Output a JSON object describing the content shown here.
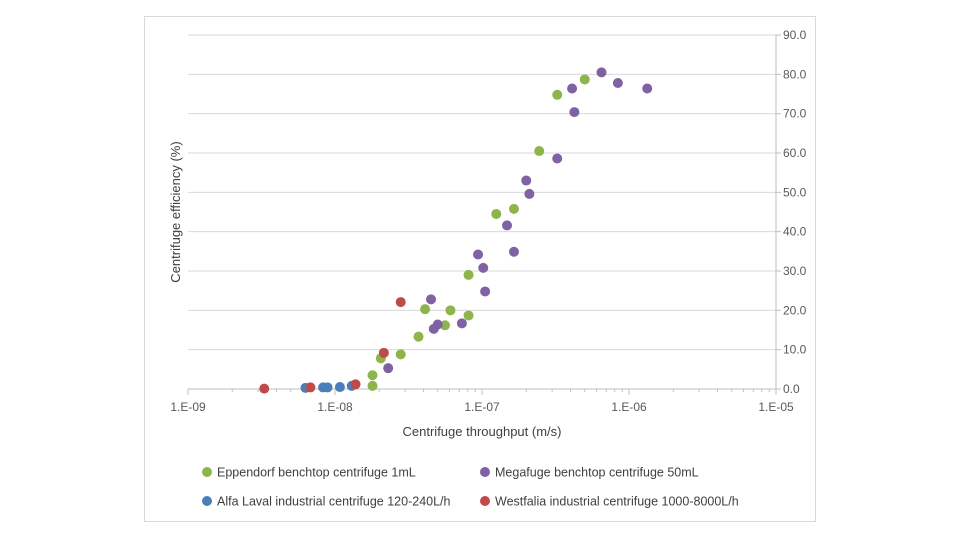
{
  "chart_data": {
    "type": "scatter",
    "xscale": "log",
    "xlim": [
      1e-09,
      1e-05
    ],
    "ylim": [
      0,
      90
    ],
    "xticks": [
      {
        "value": 1e-09,
        "label": "1.E-09"
      },
      {
        "value": 1e-08,
        "label": "1.E-08"
      },
      {
        "value": 1e-07,
        "label": "1.E-07"
      },
      {
        "value": 1e-06,
        "label": "1.E-06"
      },
      {
        "value": 1e-05,
        "label": "1.E-05"
      }
    ],
    "yticks": [
      {
        "value": 0,
        "label": "0.0"
      },
      {
        "value": 10,
        "label": "10.0"
      },
      {
        "value": 20,
        "label": "20.0"
      },
      {
        "value": 30,
        "label": "30.0"
      },
      {
        "value": 40,
        "label": "40.0"
      },
      {
        "value": 50,
        "label": "50.0"
      },
      {
        "value": 60,
        "label": "60.0"
      },
      {
        "value": 70,
        "label": "70.0"
      },
      {
        "value": 80,
        "label": "80.0"
      },
      {
        "value": 90,
        "label": "90.0"
      }
    ],
    "xlabel": "Centrifuge throughput (m/s)",
    "ylabel": "Centrifuge efficiency (%)",
    "y_axis_side": "right",
    "grid": "horizontal",
    "legend_position": "bottom",
    "series": [
      {
        "name": "Eppendorf benchtop centrifuge 1mL",
        "color": "#8db54b",
        "points": [
          {
            "x": 1.8e-08,
            "y": 0.8
          },
          {
            "x": 1.8e-08,
            "y": 3.5
          },
          {
            "x": 2.05e-08,
            "y": 7.8
          },
          {
            "x": 2.8e-08,
            "y": 8.8
          },
          {
            "x": 3.7e-08,
            "y": 13.3
          },
          {
            "x": 4.1e-08,
            "y": 20.3
          },
          {
            "x": 5.6e-08,
            "y": 16.2
          },
          {
            "x": 6.1e-08,
            "y": 20.0
          },
          {
            "x": 8.1e-08,
            "y": 18.7
          },
          {
            "x": 8.1e-08,
            "y": 29.0
          },
          {
            "x": 1.25e-07,
            "y": 44.5
          },
          {
            "x": 1.65e-07,
            "y": 45.8
          },
          {
            "x": 2.45e-07,
            "y": 60.5
          },
          {
            "x": 3.25e-07,
            "y": 74.8
          },
          {
            "x": 5e-07,
            "y": 78.7
          }
        ]
      },
      {
        "name": "Megafuge benchtop centrifuge 50mL",
        "color": "#7e62a3",
        "points": [
          {
            "x": 2.3e-08,
            "y": 5.3
          },
          {
            "x": 4.5e-08,
            "y": 22.8
          },
          {
            "x": 4.7e-08,
            "y": 15.3
          },
          {
            "x": 5e-08,
            "y": 16.4
          },
          {
            "x": 7.3e-08,
            "y": 16.7
          },
          {
            "x": 9.4e-08,
            "y": 34.2
          },
          {
            "x": 1.02e-07,
            "y": 30.8
          },
          {
            "x": 1.05e-07,
            "y": 24.8
          },
          {
            "x": 1.48e-07,
            "y": 41.6
          },
          {
            "x": 1.65e-07,
            "y": 34.9
          },
          {
            "x": 2e-07,
            "y": 53.0
          },
          {
            "x": 2.1e-07,
            "y": 49.6
          },
          {
            "x": 3.25e-07,
            "y": 58.6
          },
          {
            "x": 4.1e-07,
            "y": 76.4
          },
          {
            "x": 4.25e-07,
            "y": 70.4
          },
          {
            "x": 6.5e-07,
            "y": 80.5
          },
          {
            "x": 8.4e-07,
            "y": 77.8
          },
          {
            "x": 1.33e-06,
            "y": 76.4
          }
        ]
      },
      {
        "name": "Alfa Laval industrial centrifuge 120-240L/h",
        "color": "#4a7ebb",
        "points": [
          {
            "x": 6.3e-09,
            "y": 0.3
          },
          {
            "x": 8.3e-09,
            "y": 0.4
          },
          {
            "x": 8.9e-09,
            "y": 0.4
          },
          {
            "x": 1.08e-08,
            "y": 0.5
          },
          {
            "x": 1.3e-08,
            "y": 0.8
          }
        ]
      },
      {
        "name": "Westfalia industrial centrifuge 1000-8000L/h",
        "color": "#be4b48",
        "points": [
          {
            "x": 3.3e-09,
            "y": 0.1
          },
          {
            "x": 6.8e-09,
            "y": 0.4
          },
          {
            "x": 1.38e-08,
            "y": 1.2
          },
          {
            "x": 2.15e-08,
            "y": 9.2
          },
          {
            "x": 2.8e-08,
            "y": 22.1
          }
        ]
      }
    ]
  }
}
